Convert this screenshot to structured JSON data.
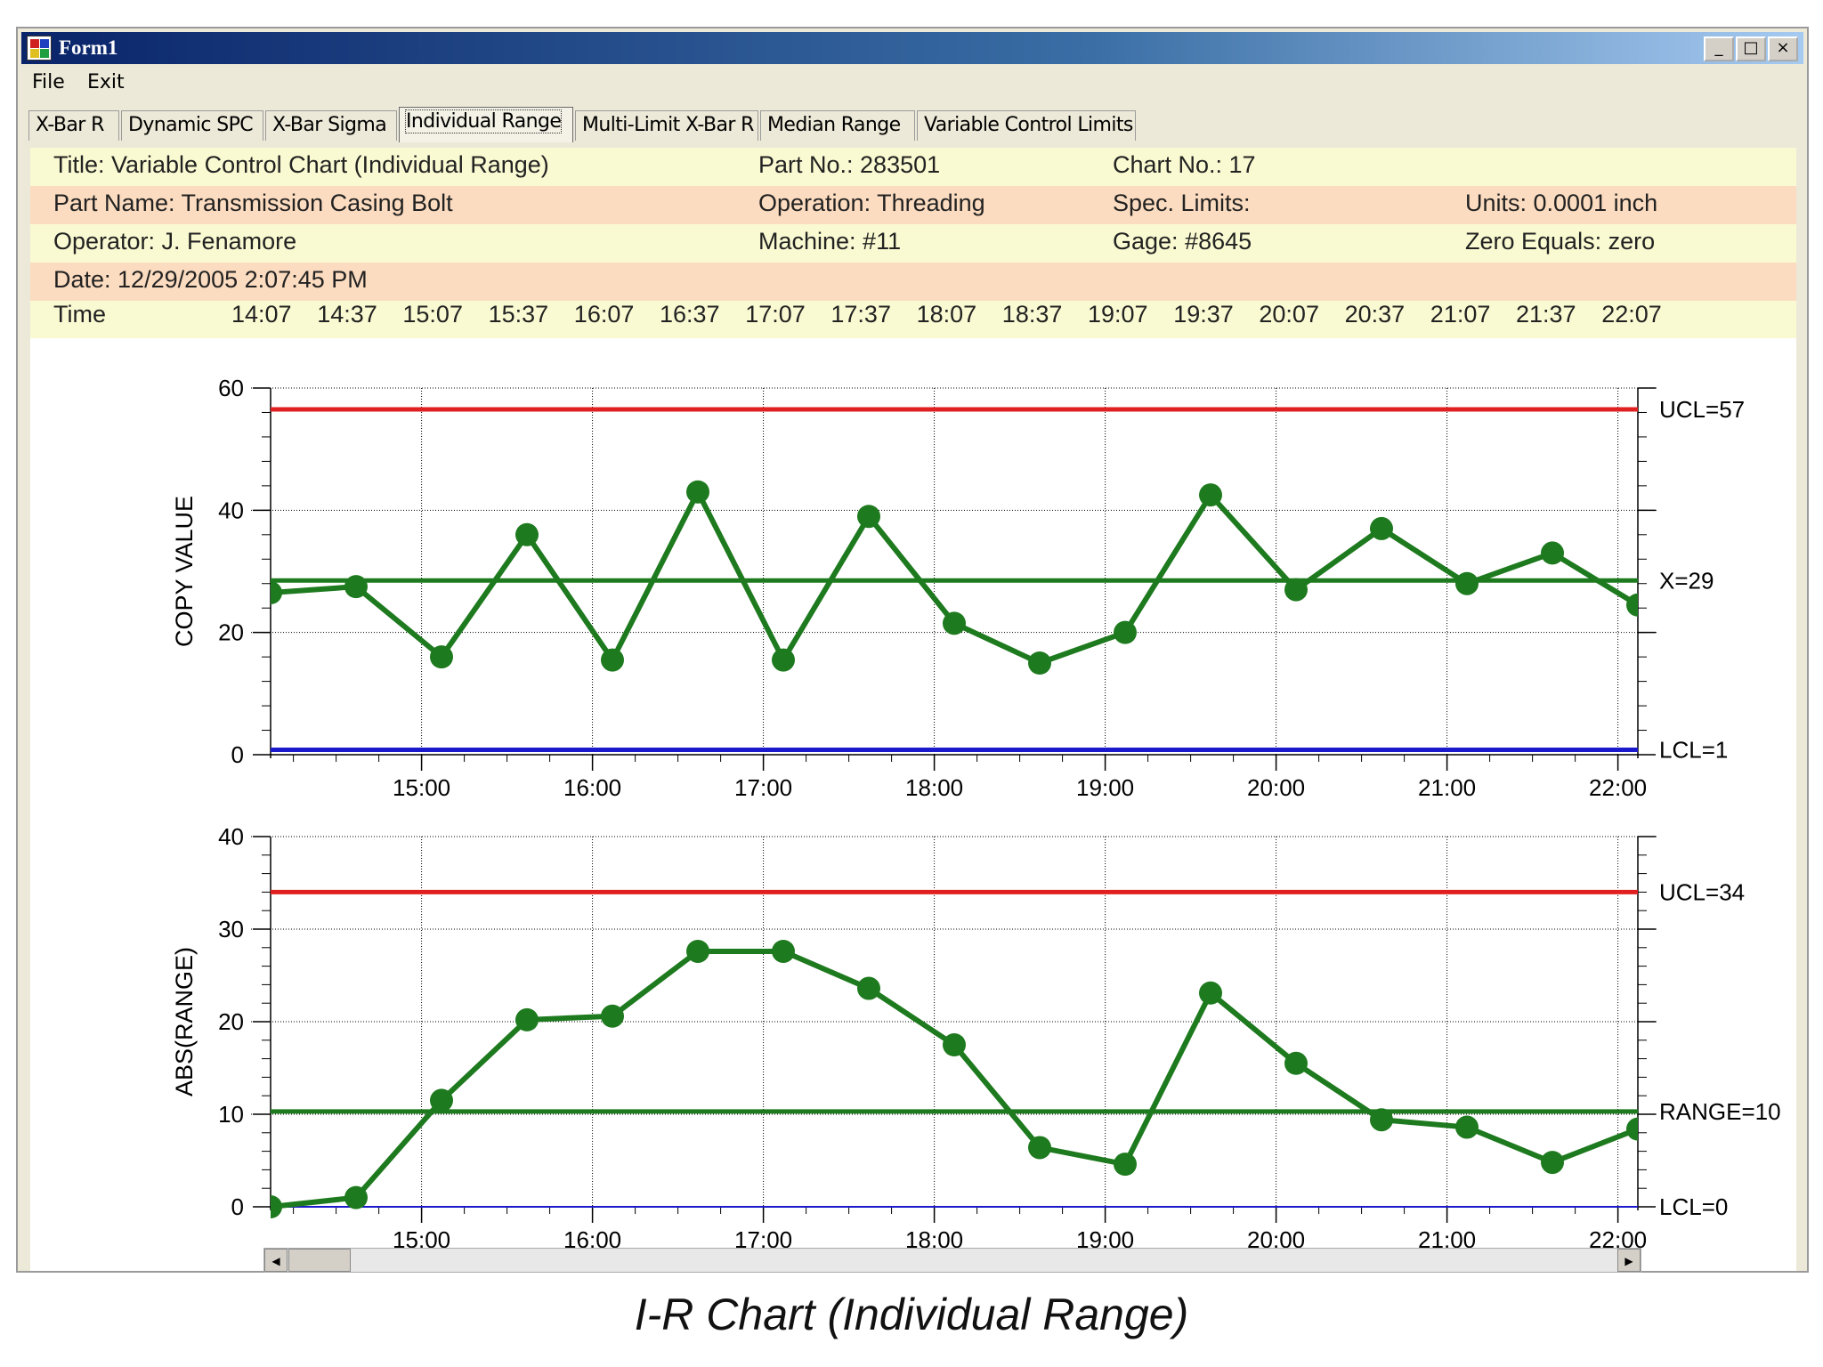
{
  "window": {
    "title": "Form1",
    "buttons": [
      "_",
      "□",
      "×"
    ]
  },
  "menu": [
    "File",
    "Exit"
  ],
  "tabs": [
    "X-Bar R",
    "Dynamic SPC",
    "X-Bar Sigma",
    "Individual Range",
    "Multi-Limit X-Bar R",
    "Median Range",
    "Variable Control Limits"
  ],
  "active_tab": "Individual Range",
  "header": {
    "rows": [
      [
        "Title: Variable Control Chart (Individual Range)",
        "Part No.: 283501",
        "Chart No.: 17",
        ""
      ],
      [
        "Part Name: Transmission Casing Bolt",
        "Operation: Threading",
        "Spec. Limits:",
        "Units: 0.0001 inch"
      ],
      [
        "Operator: J. Fenamore",
        "Machine: #11",
        "Gage: #8645",
        "Zero Equals: zero"
      ],
      [
        "Date: 12/29/2005 2:07:45 PM",
        "",
        "",
        ""
      ]
    ],
    "row_colors": [
      "#fafad2",
      "#fcdcc0",
      "#fafad2",
      "#fcdcc0",
      "#fafad2"
    ],
    "time_label": "Time",
    "times": [
      "14:07",
      "14:37",
      "15:07",
      "15:37",
      "16:07",
      "16:37",
      "17:07",
      "17:37",
      "18:07",
      "18:37",
      "19:07",
      "19:37",
      "20:07",
      "20:37",
      "21:07",
      "21:37",
      "22:07"
    ]
  },
  "caption": "I-R Chart (Individual Range)",
  "colors": {
    "ucl": "#e02020",
    "lcl": "#1a1acc",
    "center": "#1e7a1e",
    "data": "#1e7a1e"
  },
  "chart_data": [
    {
      "type": "line",
      "name": "individual",
      "ylabel": "COPY VALUE",
      "ylim": [
        0,
        60
      ],
      "yticks": [
        0,
        20,
        40,
        60
      ],
      "xlim": [
        "14:07",
        "22:07"
      ],
      "xticks": [
        "15:00",
        "16:00",
        "17:00",
        "18:00",
        "19:00",
        "20:00",
        "21:00",
        "22:00"
      ],
      "x": [
        "14:07",
        "14:37",
        "15:07",
        "15:37",
        "16:07",
        "16:37",
        "17:07",
        "17:37",
        "18:07",
        "18:37",
        "19:07",
        "19:37",
        "20:07",
        "20:37",
        "21:07",
        "21:37",
        "22:07"
      ],
      "values": [
        26.5,
        27.5,
        16,
        36,
        15.5,
        43,
        15.5,
        39,
        21.5,
        15,
        20,
        42.5,
        27,
        37,
        28,
        33,
        24.5
      ],
      "limits": [
        {
          "label": "UCL=57",
          "value": 56.5,
          "kind": "ucl"
        },
        {
          "label": "X=29",
          "value": 28.5,
          "kind": "center"
        },
        {
          "label": "LCL=1",
          "value": 0.8,
          "kind": "lcl"
        }
      ],
      "grid": true
    },
    {
      "type": "line",
      "name": "range",
      "ylabel": "ABS(RANGE)",
      "ylim": [
        0,
        40
      ],
      "yticks": [
        0,
        10,
        20,
        30,
        40
      ],
      "xlim": [
        "14:07",
        "22:07"
      ],
      "xticks": [
        "15:00",
        "16:00",
        "17:00",
        "18:00",
        "19:00",
        "20:00",
        "21:00",
        "22:00"
      ],
      "x": [
        "14:07",
        "14:37",
        "15:07",
        "15:37",
        "16:07",
        "16:37",
        "17:07",
        "17:37",
        "18:07",
        "18:37",
        "19:07",
        "19:37",
        "20:07",
        "20:37",
        "21:07",
        "21:37",
        "22:07"
      ],
      "values": [
        0,
        1,
        11.5,
        20.2,
        20.6,
        27.6,
        27.6,
        23.6,
        17.5,
        6.4,
        4.6,
        23.1,
        15.5,
        9.4,
        8.6,
        4.8,
        8.4
      ],
      "limits": [
        {
          "label": "UCL=34",
          "value": 34,
          "kind": "ucl"
        },
        {
          "label": "RANGE=10",
          "value": 10.3,
          "kind": "center"
        },
        {
          "label": "LCL=0",
          "value": 0,
          "kind": "lcl"
        }
      ],
      "grid": true
    }
  ]
}
